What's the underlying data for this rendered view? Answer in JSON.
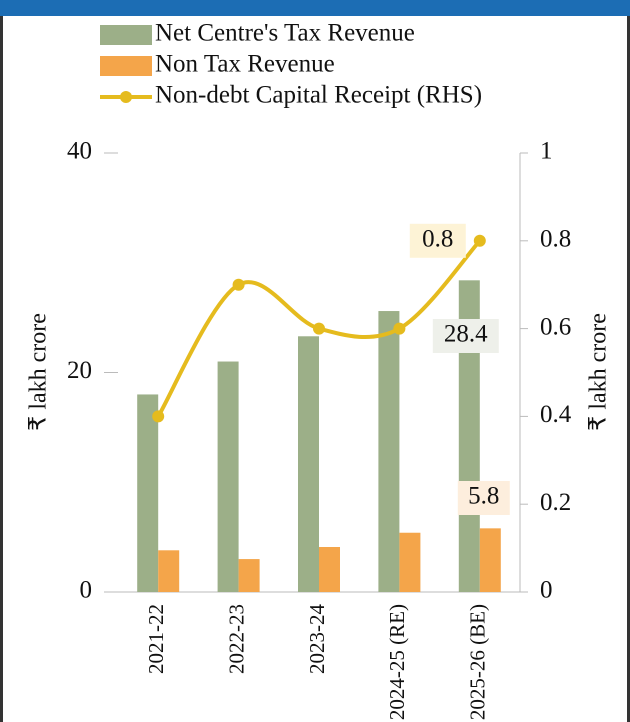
{
  "chart_data": {
    "type": "bar_line",
    "categories": [
      "2021-22",
      "2022-23",
      "2023-24",
      "2024-25 (RE)",
      "2025-26 (BE)"
    ],
    "series": [
      {
        "name": "Net Centre's Tax Revenue",
        "color": "#9caf88",
        "type": "bar",
        "values": [
          18.0,
          21.0,
          23.3,
          25.6,
          28.4
        ]
      },
      {
        "name": "Non Tax Revenue",
        "color": "#f4a54a",
        "type": "bar",
        "values": [
          3.8,
          3.0,
          4.1,
          5.4,
          5.8
        ]
      },
      {
        "name": "Non-debt Capital Receipt (RHS)",
        "color": "#e5bb1e",
        "type": "line",
        "axis": "y2",
        "values": [
          0.4,
          0.7,
          0.6,
          0.6,
          0.8
        ]
      }
    ],
    "y_label": "₹ lakh crore",
    "y2_label": "₹ lakh crore",
    "ylim": [
      0,
      40
    ],
    "yticks": [
      0,
      20,
      40
    ],
    "y2lim": [
      0,
      1
    ],
    "y2ticks": [
      0,
      0.2,
      0.4,
      0.6,
      0.8,
      1
    ],
    "grid": false
  }
}
